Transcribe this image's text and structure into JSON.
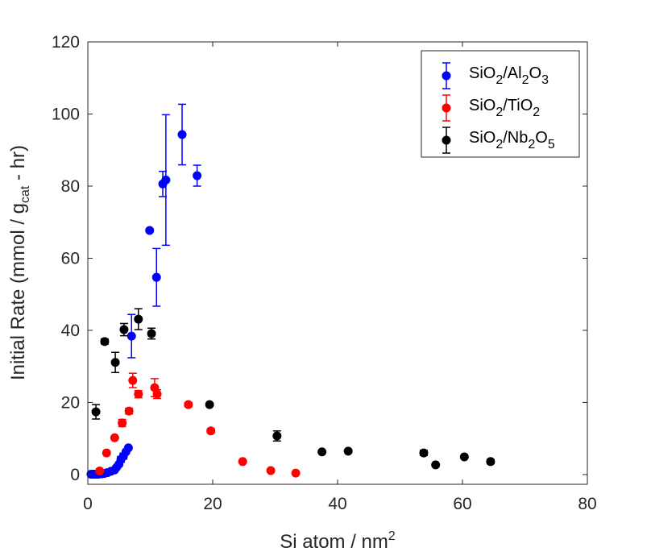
{
  "chart_data": {
    "type": "scatter",
    "title": "",
    "xlabel": "Si atom / nm",
    "xlabel_sup": "2",
    "ylabel": "Initial Rate (mmol / g",
    "ylabel_sub": "cat",
    "ylabel_tail": " - hr)",
    "xlim": [
      0,
      80
    ],
    "ylim": [
      -2.7,
      120
    ],
    "xticks": [
      0,
      20,
      40,
      60,
      80
    ],
    "yticks": [
      0,
      20,
      40,
      60,
      80,
      100,
      120
    ],
    "xtick_labels": [
      "0",
      "20",
      "40",
      "60",
      "80"
    ],
    "ytick_labels": [
      "0",
      "20",
      "40",
      "60",
      "80",
      "100",
      "120"
    ],
    "grid": false,
    "legend_position": "top-right",
    "series": [
      {
        "name": "SiO2/Al2O3",
        "legend_parts": [
          [
            "SiO",
            ""
          ],
          [
            "2",
            "sub"
          ],
          [
            "/Al",
            ""
          ],
          [
            "2",
            "sub"
          ],
          [
            "O",
            ""
          ],
          [
            "3",
            "sub"
          ]
        ],
        "color": "#0000ff",
        "points": [
          {
            "x": 0.5,
            "y": 0.1
          },
          {
            "x": 0.8,
            "y": 0.1
          },
          {
            "x": 1.1,
            "y": 0.1
          },
          {
            "x": 1.4,
            "y": 0.1
          },
          {
            "x": 1.7,
            "y": 0.1
          },
          {
            "x": 2.0,
            "y": 0.2
          },
          {
            "x": 2.3,
            "y": 0.2
          },
          {
            "x": 2.6,
            "y": 0.3
          },
          {
            "x": 3.1,
            "y": 0.5
          },
          {
            "x": 3.7,
            "y": 0.9
          },
          {
            "x": 4.3,
            "y": 1.3
          },
          {
            "x": 4.6,
            "y": 2.0
          },
          {
            "x": 5.0,
            "y": 2.9
          },
          {
            "x": 5.3,
            "y": 4.2,
            "err": 0.8
          },
          {
            "x": 5.7,
            "y": 5.1,
            "err": 0.8
          },
          {
            "x": 6.1,
            "y": 6.3
          },
          {
            "x": 6.5,
            "y": 7.4
          },
          {
            "x": 7.0,
            "y": 38.4,
            "err": 6.0
          },
          {
            "x": 9.9,
            "y": 67.7
          },
          {
            "x": 11.0,
            "y": 54.7,
            "err": 8.0
          },
          {
            "x": 12.0,
            "y": 80.6,
            "err": 3.5
          },
          {
            "x": 12.5,
            "y": 81.7,
            "err": 18.1
          },
          {
            "x": 15.1,
            "y": 94.3,
            "err": 8.4
          },
          {
            "x": 17.5,
            "y": 82.9,
            "err": 2.9
          }
        ]
      },
      {
        "name": "SiO2/TiO2",
        "legend_parts": [
          [
            "SiO",
            ""
          ],
          [
            "2",
            "sub"
          ],
          [
            "/TiO",
            ""
          ],
          [
            "2",
            "sub"
          ]
        ],
        "color": "#ff0000",
        "points": [
          {
            "x": 1.9,
            "y": 1.0
          },
          {
            "x": 3.0,
            "y": 6.0
          },
          {
            "x": 4.3,
            "y": 10.2
          },
          {
            "x": 5.5,
            "y": 14.3,
            "err": 1.0
          },
          {
            "x": 6.6,
            "y": 17.6,
            "err": 0.8
          },
          {
            "x": 7.2,
            "y": 26.1,
            "err": 2.0
          },
          {
            "x": 8.1,
            "y": 22.3,
            "err": 1.0
          },
          {
            "x": 10.7,
            "y": 24.1,
            "err": 2.5
          },
          {
            "x": 11.1,
            "y": 22.3,
            "err": 1.2
          },
          {
            "x": 16.1,
            "y": 19.4,
            "err": 0.6
          },
          {
            "x": 19.7,
            "y": 12.1,
            "err": 0.6
          },
          {
            "x": 24.8,
            "y": 3.6
          },
          {
            "x": 29.3,
            "y": 1.1
          },
          {
            "x": 33.3,
            "y": 0.4
          }
        ]
      },
      {
        "name": "SiO2/Nb2O5",
        "legend_parts": [
          [
            "SiO",
            ""
          ],
          [
            "2",
            "sub"
          ],
          [
            "/Nb",
            ""
          ],
          [
            "2",
            "sub"
          ],
          [
            "O",
            ""
          ],
          [
            "5",
            "sub"
          ]
        ],
        "color": "#000000",
        "points": [
          {
            "x": 1.3,
            "y": 17.4,
            "err": 2.0
          },
          {
            "x": 2.7,
            "y": 36.9,
            "err": 0.7
          },
          {
            "x": 4.4,
            "y": 31.1,
            "err": 2.8
          },
          {
            "x": 5.8,
            "y": 40.2,
            "err": 1.7
          },
          {
            "x": 8.1,
            "y": 43.1,
            "err": 2.9
          },
          {
            "x": 10.2,
            "y": 39.1,
            "err": 1.5
          },
          {
            "x": 19.5,
            "y": 19.4
          },
          {
            "x": 30.3,
            "y": 10.7,
            "err": 1.4
          },
          {
            "x": 37.5,
            "y": 6.3
          },
          {
            "x": 41.7,
            "y": 6.5
          },
          {
            "x": 53.8,
            "y": 6.0,
            "err": 0.7
          },
          {
            "x": 55.7,
            "y": 2.7
          },
          {
            "x": 60.3,
            "y": 4.9
          },
          {
            "x": 64.5,
            "y": 3.6,
            "err": 0.6
          }
        ]
      }
    ]
  }
}
